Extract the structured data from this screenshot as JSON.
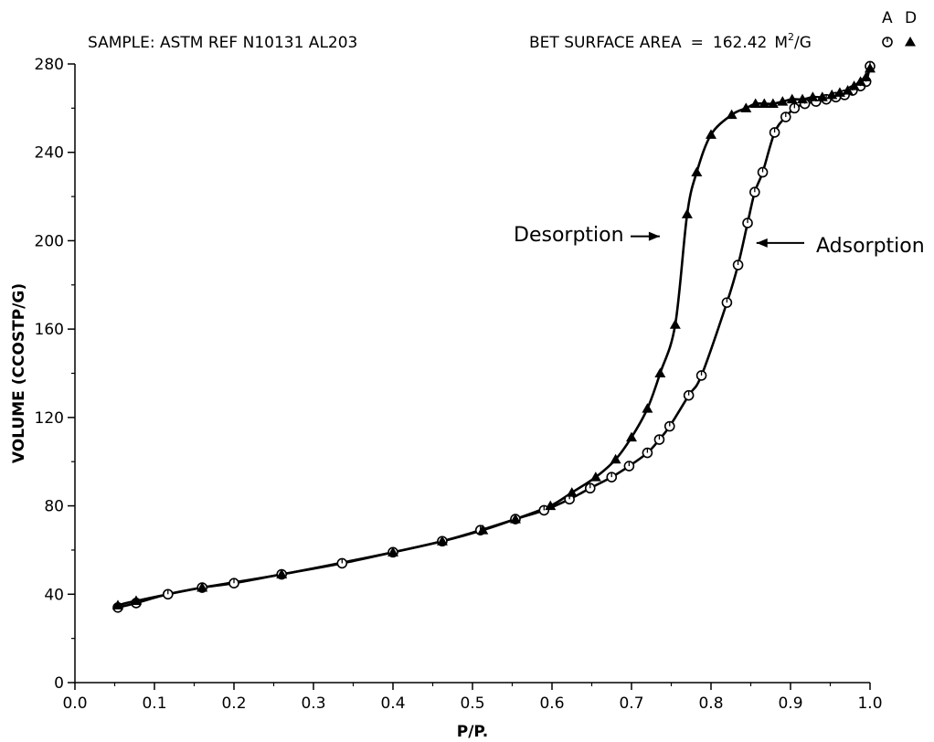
{
  "chart_data": {
    "type": "line",
    "sample_label": "SAMPLE: ASTM REF N10131 AL203",
    "bet_label": "BET SURFACE AREA",
    "bet_equals": "=",
    "bet_value": "162.42",
    "bet_unit_base": "M",
    "bet_unit_sup": "2",
    "bet_unit_tail": "/G",
    "xlabel": "P/P.",
    "ylabel": "VOLUME (CCOSTP/G)",
    "xlim": [
      0.0,
      1.0
    ],
    "ylim": [
      0,
      280
    ],
    "x_ticks": [
      "0.0",
      "0.1",
      "0.2",
      "0.3",
      "0.4",
      "0.5",
      "0.6",
      "0.7",
      "0.8",
      "0.9",
      "1.0"
    ],
    "y_ticks": [
      "0",
      "40",
      "80",
      "120",
      "160",
      "200",
      "240",
      "280"
    ],
    "legend": [
      {
        "label": "A",
        "marker": "open-circle"
      },
      {
        "label": "D",
        "marker": "filled-triangle"
      }
    ],
    "annotations": [
      {
        "text": "Desorption",
        "arrow_to": [
          0.77,
          202
        ]
      },
      {
        "text": "Adsorption",
        "arrow_to": [
          0.848,
          199
        ]
      }
    ],
    "series": [
      {
        "name": "A",
        "marker": "open-circle",
        "x": [
          0.054,
          0.077,
          0.117,
          0.16,
          0.2,
          0.26,
          0.336,
          0.4,
          0.462,
          0.51,
          0.554,
          0.59,
          0.622,
          0.648,
          0.675,
          0.697,
          0.72,
          0.735,
          0.748,
          0.772,
          0.788,
          0.82,
          0.834,
          0.846,
          0.855,
          0.865,
          0.88,
          0.894,
          0.905,
          0.918,
          0.932,
          0.945,
          0.957,
          0.968,
          0.978,
          0.988,
          0.995,
          1.0
        ],
        "values": [
          34,
          36,
          40,
          43,
          45,
          49,
          54,
          59,
          64,
          69,
          74,
          78,
          83,
          88,
          93,
          98,
          104,
          110,
          116,
          130,
          139,
          172,
          189,
          208,
          222,
          231,
          249,
          256,
          260,
          262,
          263,
          264,
          265,
          266,
          268,
          270,
          272,
          279
        ]
      },
      {
        "name": "D",
        "marker": "filled-triangle",
        "x": [
          0.054,
          0.077,
          0.16,
          0.26,
          0.4,
          0.462,
          0.513,
          0.554,
          0.598,
          0.625,
          0.655,
          0.68,
          0.7,
          0.72,
          0.736,
          0.755,
          0.77,
          0.782,
          0.8,
          0.826,
          0.844,
          0.856,
          0.867,
          0.878,
          0.89,
          0.902,
          0.915,
          0.928,
          0.94,
          0.952,
          0.962,
          0.972,
          0.98,
          0.988,
          0.995,
          1.0
        ],
        "values": [
          35,
          37,
          43,
          49,
          59,
          64,
          69,
          74,
          80,
          86,
          93,
          101,
          111,
          124,
          140,
          162,
          212,
          231,
          248,
          257,
          260,
          262,
          262,
          262,
          263,
          264,
          264,
          265,
          265,
          266,
          267,
          268,
          270,
          272,
          274,
          278
        ]
      }
    ]
  }
}
